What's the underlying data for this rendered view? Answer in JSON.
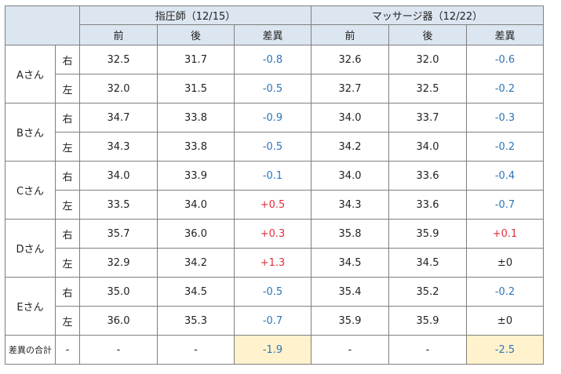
{
  "groups": [
    {
      "title": "指圧師（12/15）"
    },
    {
      "title": "マッサージ器（12/22）"
    }
  ],
  "subheaders": [
    "前",
    "後",
    "差異",
    "前",
    "後",
    "差異"
  ],
  "rows": [
    {
      "person": "Aさん",
      "side": "右",
      "v": [
        "32.5",
        "31.7",
        "-0.8",
        "32.6",
        "32.0",
        "-0.6"
      ]
    },
    {
      "person": "",
      "side": "左",
      "v": [
        "32.0",
        "31.5",
        "-0.5",
        "32.7",
        "32.5",
        "-0.2"
      ]
    },
    {
      "person": "Bさん",
      "side": "右",
      "v": [
        "34.7",
        "33.8",
        "-0.9",
        "34.0",
        "33.7",
        "-0.3"
      ]
    },
    {
      "person": "",
      "side": "左",
      "v": [
        "34.3",
        "33.8",
        "-0.5",
        "34.2",
        "34.0",
        "-0.2"
      ]
    },
    {
      "person": "Cさん",
      "side": "右",
      "v": [
        "34.0",
        "33.9",
        "-0.1",
        "34.0",
        "33.6",
        "-0.4"
      ]
    },
    {
      "person": "",
      "side": "左",
      "v": [
        "33.5",
        "34.0",
        "+0.5",
        "34.3",
        "33.6",
        "-0.7"
      ]
    },
    {
      "person": "Dさん",
      "side": "右",
      "v": [
        "35.7",
        "36.0",
        "+0.3",
        "35.8",
        "35.9",
        "+0.1"
      ]
    },
    {
      "person": "",
      "side": "左",
      "v": [
        "32.9",
        "34.2",
        "+1.3",
        "34.5",
        "34.5",
        "±0"
      ]
    },
    {
      "person": "Eさん",
      "side": "右",
      "v": [
        "35.0",
        "34.5",
        "-0.5",
        "35.4",
        "35.2",
        "-0.2"
      ]
    },
    {
      "person": "",
      "side": "左",
      "v": [
        "36.0",
        "35.3",
        "-0.7",
        "35.9",
        "35.9",
        "±0"
      ]
    }
  ],
  "total": {
    "label": "差異の合計",
    "side": "-",
    "v": [
      "-",
      "-",
      "-1.9",
      "-",
      "-",
      "-2.5"
    ]
  },
  "colors": {
    "header_bg": "#dce6f1",
    "negative": "#2e75b6",
    "positive": "#e0303c",
    "highlight": "#fff2cc"
  }
}
